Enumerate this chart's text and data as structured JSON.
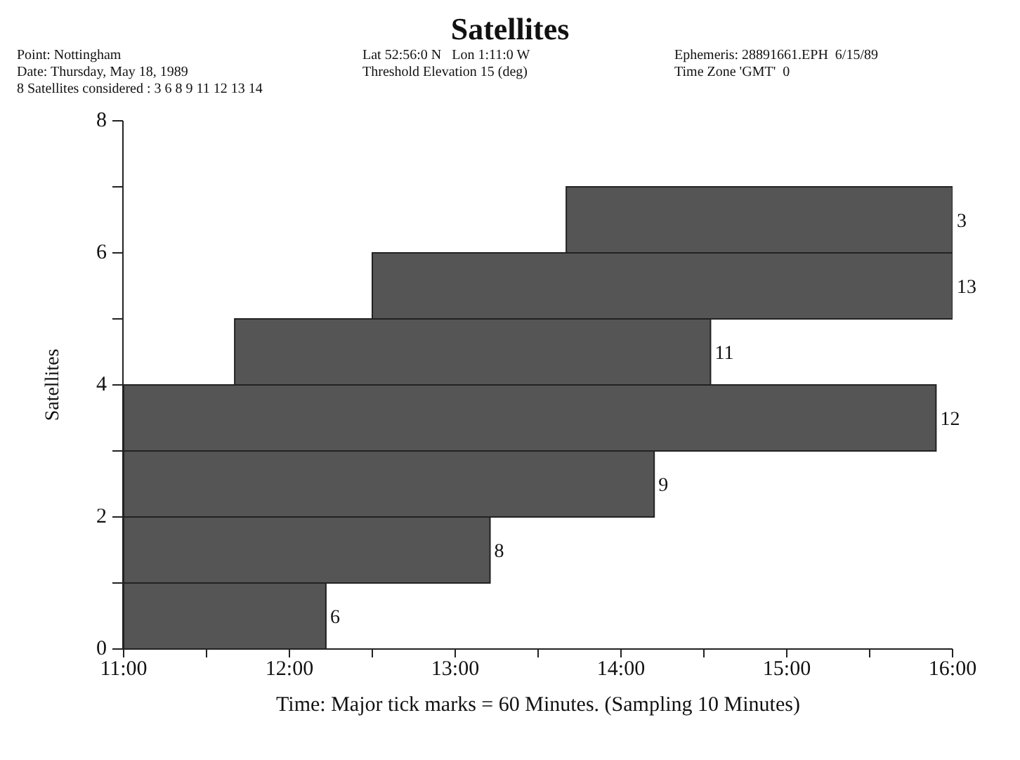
{
  "chart_data": {
    "type": "bar",
    "orientation": "horizontal",
    "title": "Satellites",
    "xlabel": "Time: Major tick marks = 60 Minutes. (Sampling 10 Minutes)",
    "y2label": "Satellites",
    "annotations": [
      "Point: Nottingham",
      "Date: Thursday, May 18, 1989",
      "8 Satellites considered : 3 6 8 9 11 12 13 14",
      "Lat 52:56:0 N   Lon 1:11:0 W",
      "Threshold Elevation 15 (deg)",
      "Ephemeris: 28891661.EPH  6/15/89",
      "Time Zone 'GMT'  0"
    ],
    "categories": [
      "3",
      "13",
      "11",
      "12",
      "9",
      "8",
      "6"
    ],
    "base": [
      13.67,
      12.5,
      11.67,
      11,
      11,
      11,
      11
    ],
    "values": [
      2.33,
      3.5,
      2.87,
      4.9,
      3.2,
      2.21,
      1.22
    ],
    "color": "#555555",
    "xlim": [
      11,
      16
    ],
    "xticks": [
      {
        "value": 11,
        "label": "11:00"
      },
      {
        "value": 11.5,
        "label": null
      },
      {
        "value": 12,
        "label": "12:00"
      },
      {
        "value": 12.5,
        "label": null
      },
      {
        "value": 13,
        "label": "13:00"
      },
      {
        "value": 13.5,
        "label": null
      },
      {
        "value": 14,
        "label": "14:00"
      },
      {
        "value": 14.5,
        "label": null
      },
      {
        "value": 15,
        "label": "15:00"
      },
      {
        "value": 15.5,
        "label": null
      },
      {
        "value": 16,
        "label": "16:00"
      }
    ],
    "y2lim": [
      0,
      8
    ],
    "y2ticks": [
      0,
      {
        "value": 1,
        "label": null
      },
      2,
      {
        "value": 3,
        "label": null
      },
      4,
      {
        "value": 5,
        "label": null
      },
      6,
      {
        "value": 7,
        "label": null
      },
      8
    ]
  }
}
